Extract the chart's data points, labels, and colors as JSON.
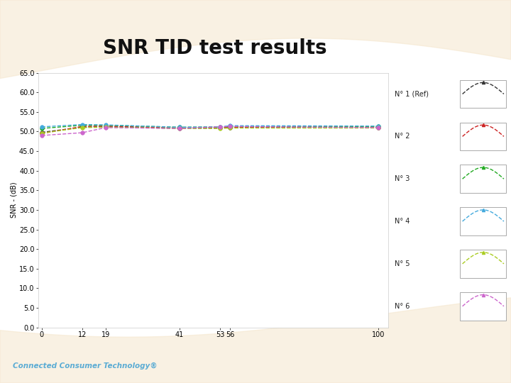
{
  "title": "SNR TID test results",
  "ylabel": "SNR - (dB)",
  "x_ticks": [
    0,
    12,
    19,
    41,
    53,
    56,
    100
  ],
  "ylim": [
    0.0,
    65.0
  ],
  "yticks": [
    0.0,
    5.0,
    10.0,
    15.0,
    20.0,
    25.0,
    30.0,
    35.0,
    40.0,
    45.0,
    50.0,
    55.0,
    60.0,
    65.0
  ],
  "plot_bg_color": "#ffffff",
  "slide_bg": "#ffffff",
  "series": [
    {
      "label": "N° 1 (Ref)",
      "color": "#333333",
      "linestyle": "--",
      "marker": "o",
      "markersize": 4,
      "data_x": [
        0,
        12,
        19,
        41,
        53,
        56,
        100
      ],
      "data_y": [
        49.8,
        51.1,
        51.2,
        50.8,
        50.9,
        51.0,
        51.0
      ]
    },
    {
      "label": "N° 2",
      "color": "#cc2222",
      "linestyle": "--",
      "marker": "o",
      "markersize": 4,
      "data_x": [
        0,
        12,
        19,
        41,
        53,
        56,
        100
      ],
      "data_y": [
        49.5,
        51.3,
        51.4,
        50.9,
        51.0,
        51.1,
        51.1
      ]
    },
    {
      "label": "N° 3",
      "color": "#22aa22",
      "linestyle": "--",
      "marker": "o",
      "markersize": 4,
      "data_x": [
        0,
        12,
        19,
        41,
        53,
        56,
        100
      ],
      "data_y": [
        50.8,
        51.6,
        51.6,
        51.1,
        51.2,
        51.3,
        51.3
      ]
    },
    {
      "label": "N° 4",
      "color": "#44aadd",
      "linestyle": "--",
      "marker": "o",
      "markersize": 4,
      "data_x": [
        0,
        12,
        19,
        41,
        53,
        56,
        100
      ],
      "data_y": [
        51.2,
        51.8,
        51.7,
        51.1,
        51.2,
        51.5,
        51.4
      ]
    },
    {
      "label": "N° 5",
      "color": "#aacc22",
      "linestyle": "--",
      "marker": "o",
      "markersize": 4,
      "data_x": [
        0,
        12,
        19,
        41,
        53,
        56,
        100
      ],
      "data_y": [
        49.6,
        51.0,
        51.1,
        50.8,
        50.8,
        50.9,
        50.9
      ]
    },
    {
      "label": "N° 6",
      "color": "#cc66cc",
      "linestyle": "--",
      "marker": "o",
      "markersize": 4,
      "data_x": [
        0,
        12,
        19,
        41,
        53,
        56,
        100
      ],
      "data_y": [
        49.0,
        49.7,
        51.0,
        50.8,
        51.2,
        51.3,
        51.0
      ]
    }
  ],
  "title_fontsize": 20,
  "axis_fontsize": 7,
  "tick_fontsize": 7,
  "legend_fontsize": 7,
  "footer_text": "Connected Consumer Technology®",
  "band_color": "#f5e6cc",
  "band_color2": "#faebd7",
  "footer_color": "#5bacd4",
  "plot_border_color": "#cccccc"
}
